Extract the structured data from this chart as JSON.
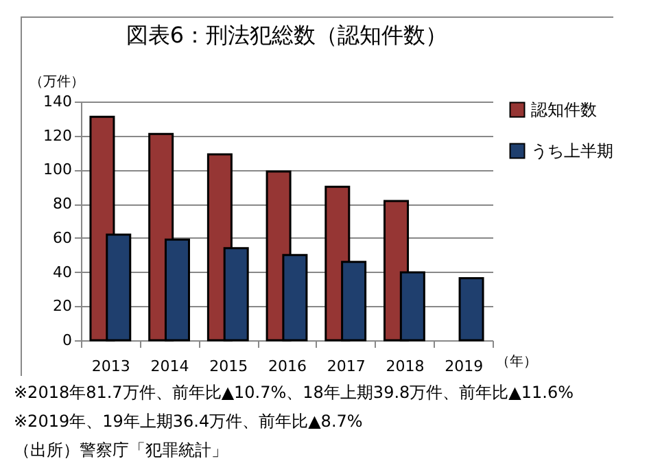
{
  "chart_data": {
    "type": "bar",
    "title": "図表6：刑法犯総数（認知件数）",
    "categories": [
      "2013",
      "2014",
      "2015",
      "2016",
      "2017",
      "2018",
      "2019"
    ],
    "series": [
      {
        "name": "認知件数",
        "color": "#963634",
        "values": [
          131,
          121,
          109,
          99,
          90,
          81.7,
          null
        ]
      },
      {
        "name": "うち上半期",
        "color": "#1f3f6e",
        "values": [
          62,
          59,
          54,
          50,
          46,
          39.8,
          36.4
        ]
      }
    ],
    "ylabel": "（万件）",
    "xlabel": "（年）",
    "ylim": [
      0,
      140
    ],
    "yticks": [
      0,
      20,
      40,
      60,
      80,
      100,
      120,
      140
    ],
    "grid": "y",
    "legend": "right",
    "annotations": [
      "※2018年81.7万件、前年比▲10.7%、18年上期39.8万件、前年比▲11.6%",
      "※2019年、19年上期36.4万件、前年比▲8.7%",
      "（出所）警察庁「犯罪統計」"
    ]
  }
}
